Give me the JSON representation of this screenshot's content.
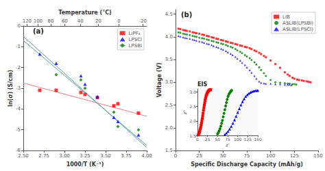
{
  "chart_data": [
    {
      "type": "scatter",
      "x2label": "Temperature (°C)",
      "xlabel": "1000/T (K⁻¹)",
      "ylabel": "ln(σ) (S/cm)",
      "annotation": "(a)",
      "xlim": [
        2.5,
        4.0
      ],
      "ylim": [
        -6,
        0
      ],
      "xticks": [
        {
          "value": 2.5,
          "label": "2.50"
        },
        2.75,
        {
          "value": 3.0,
          "label": "3.00"
        },
        3.25,
        {
          "value": 3.5,
          "label": "3.50"
        },
        3.75,
        {
          "value": 4.0,
          "label": "4.00"
        }
      ],
      "yticks": [
        0,
        -1,
        -2,
        -3,
        -4,
        -5,
        -6
      ],
      "x2lim": [
        2.5,
        4.0
      ],
      "x2ticks": [
        {
          "value": 2.545,
          "label": "120"
        },
        {
          "value": 2.678,
          "label": "100"
        },
        {
          "value": 2.833,
          "label": "80"
        },
        {
          "value": 3.003,
          "label": "60"
        },
        {
          "value": 3.194,
          "label": "40"
        },
        {
          "value": 3.413,
          "label": "20"
        },
        {
          "value": 3.663,
          "label": "0"
        },
        {
          "value": 3.953,
          "label": "-20"
        }
      ],
      "grid": false,
      "legend": "upper right",
      "series": [
        {
          "type": "line",
          "color": "#f08080",
          "line_style": "solid",
          "x": [
            2.5,
            4.0
          ],
          "values": [
            -2.75,
            -4.35
          ]
        },
        {
          "type": "line",
          "color": "#6090d0",
          "line_style": "solid",
          "x": [
            2.5,
            4.0
          ],
          "values": [
            -0.5,
            -5.85
          ]
        },
        {
          "type": "line",
          "color": "#50b080",
          "line_style": "solid",
          "x": [
            2.5,
            4.0
          ],
          "values": [
            -0.7,
            -5.75
          ]
        },
        {
          "name": "LiPF₆",
          "type": "scatter",
          "color": "red",
          "marker": "square",
          "x": [
            2.7,
            2.9,
            3.2,
            3.25,
            3.4,
            3.6,
            3.65,
            3.9
          ],
          "values": [
            -3.1,
            -3.1,
            -3.2,
            -3.3,
            -3.45,
            -3.85,
            -3.75,
            -4.2
          ]
        },
        {
          "name": "LPSCl",
          "type": "scatter",
          "color": "blue",
          "marker": "triangle",
          "x": [
            2.7,
            2.9,
            3.2,
            3.25,
            3.4,
            3.6,
            3.65,
            3.9
          ],
          "values": [
            -1.35,
            -1.8,
            -2.4,
            -2.8,
            -3.4,
            -4.4,
            -4.6,
            -5.25
          ]
        },
        {
          "name": "LPSBl",
          "type": "scatter",
          "color": "green",
          "marker": "diamond",
          "x": [
            2.9,
            3.2,
            3.25,
            3.6,
            3.65,
            3.9
          ],
          "values": [
            -2.35,
            -2.6,
            -3.0,
            -4.15,
            -4.85,
            -5.0
          ]
        }
      ]
    },
    {
      "type": "scatter",
      "xlabel": "Specific Discharge Capacity (mAh/g)",
      "ylabel": "Voltage (V)",
      "annotation": "(b)",
      "xlim": [
        0,
        150
      ],
      "ylim": [
        1.5,
        4.6
      ],
      "xticks": [
        0,
        25,
        50,
        75,
        100,
        125,
        150
      ],
      "yticks": [
        1.5,
        {
          "value": 2.0,
          "label": "2.0"
        },
        2.5,
        {
          "value": 3.0,
          "label": "3.0"
        },
        3.5,
        {
          "value": 4.0,
          "label": "4.0"
        },
        4.5
      ],
      "grid": false,
      "legend": "upper right",
      "series": [
        {
          "name": "LIB",
          "color": "red",
          "marker": "square",
          "x": [
            3,
            5,
            8,
            10,
            12,
            15,
            18,
            20,
            22,
            25,
            28,
            30,
            33,
            35,
            38,
            40,
            43,
            45,
            48,
            50,
            53,
            55,
            58,
            60,
            63,
            65,
            68,
            70,
            73,
            75,
            78,
            80,
            83,
            85,
            88,
            90,
            93,
            95,
            100,
            105,
            110,
            115,
            118,
            120,
            123,
            125,
            128,
            130,
            133,
            135,
            138,
            140,
            142
          ],
          "values": [
            4.18,
            4.17,
            4.15,
            4.14,
            4.13,
            4.12,
            4.1,
            4.09,
            4.08,
            4.07,
            4.05,
            4.04,
            4.02,
            4.01,
            3.99,
            3.98,
            3.96,
            3.95,
            3.93,
            3.92,
            3.9,
            3.89,
            3.87,
            3.86,
            3.84,
            3.83,
            3.81,
            3.8,
            3.78,
            3.77,
            3.75,
            3.73,
            3.7,
            3.68,
            3.65,
            3.62,
            3.58,
            3.55,
            3.48,
            3.4,
            3.32,
            3.22,
            3.17,
            3.14,
            3.1,
            3.08,
            3.06,
            3.05,
            3.04,
            3.03,
            3.02,
            3.01,
            3.0
          ]
        },
        {
          "name": "ASLIB(LPSBI)",
          "color": "green",
          "marker": "circle",
          "x": [
            3,
            5,
            8,
            10,
            12,
            15,
            18,
            20,
            22,
            25,
            28,
            30,
            33,
            35,
            38,
            40,
            43,
            45,
            48,
            50,
            53,
            55,
            58,
            60,
            63,
            65,
            68,
            70,
            73,
            75,
            78,
            80,
            83,
            85,
            88,
            90,
            93,
            95,
            100,
            105,
            110,
            115,
            118,
            120,
            123,
            125,
            127
          ],
          "values": [
            4.1,
            4.09,
            4.07,
            4.06,
            4.05,
            4.04,
            4.02,
            4.01,
            4.0,
            3.98,
            3.97,
            3.96,
            3.94,
            3.93,
            3.91,
            3.9,
            3.88,
            3.87,
            3.85,
            3.84,
            3.82,
            3.8,
            3.78,
            3.76,
            3.73,
            3.7,
            3.67,
            3.64,
            3.6,
            3.57,
            3.53,
            3.49,
            3.44,
            3.39,
            3.33,
            3.27,
            3.2,
            3.14,
            3.05,
            3.0,
            2.99,
            2.98,
            2.97,
            2.97,
            2.96,
            2.96,
            2.95
          ]
        },
        {
          "name": "ASLIB(LPSCl)",
          "color": "blue",
          "marker": "triangle",
          "x": [
            3,
            5,
            8,
            10,
            12,
            15,
            18,
            20,
            22,
            25,
            28,
            30,
            33,
            35,
            38,
            40,
            43,
            45,
            48,
            50,
            53,
            55,
            58,
            60,
            63,
            65,
            68,
            70,
            73,
            75,
            78,
            80,
            83,
            85,
            88,
            90,
            93,
            95,
            100,
            105,
            110,
            115,
            118,
            120,
            122
          ],
          "values": [
            4.02,
            4.01,
            3.99,
            3.98,
            3.97,
            3.96,
            3.94,
            3.93,
            3.92,
            3.9,
            3.89,
            3.87,
            3.85,
            3.84,
            3.82,
            3.8,
            3.78,
            3.76,
            3.74,
            3.72,
            3.69,
            3.66,
            3.63,
            3.6,
            3.56,
            3.52,
            3.48,
            3.43,
            3.38,
            3.33,
            3.27,
            3.21,
            3.14,
            3.08,
            3.02,
            2.99,
            2.98,
            2.97,
            2.97,
            2.96,
            2.96,
            2.95,
            2.95,
            2.95,
            2.94
          ]
        }
      ]
    },
    {
      "type": "line",
      "xlabel": "z'",
      "ylabel": "z''",
      "annotation": "EIS",
      "xlim": [
        0,
        150
      ],
      "ylim": [
        1.5,
        3.1
      ],
      "xticks": [
        0,
        25,
        50,
        75,
        100,
        125,
        150
      ],
      "yticks": [
        1.5,
        {
          "value": 2.0,
          "label": "2.0"
        },
        2.5,
        {
          "value": 3.0,
          "label": "3.0"
        }
      ],
      "grid": false,
      "series": [
        {
          "color": "red",
          "marker": "square",
          "line_style": "dashed",
          "x": [
            2,
            3,
            4,
            5,
            6,
            7,
            8,
            9,
            10,
            11,
            12,
            13,
            14,
            15,
            16,
            17,
            18,
            19,
            20,
            21,
            22,
            23,
            24,
            25,
            26,
            27,
            28,
            29,
            30,
            31,
            32,
            33
          ],
          "values": [
            1.52,
            1.55,
            1.58,
            1.62,
            1.67,
            1.72,
            1.78,
            1.85,
            1.92,
            2.0,
            2.08,
            2.17,
            2.26,
            2.36,
            2.45,
            2.54,
            2.62,
            2.7,
            2.77,
            2.83,
            2.88,
            2.92,
            2.95,
            2.98,
            3.0,
            3.02,
            3.04,
            3.05,
            3.06,
            3.07,
            3.07,
            3.08
          ]
        },
        {
          "color": "green",
          "marker": "circle",
          "line_style": "dashed",
          "x": [
            50,
            52,
            54,
            56,
            58,
            60,
            62,
            64,
            66,
            68,
            70,
            72,
            74,
            76,
            78,
            80,
            82,
            83,
            84,
            85
          ],
          "values": [
            1.55,
            1.6,
            1.66,
            1.73,
            1.82,
            1.92,
            2.02,
            2.14,
            2.26,
            2.38,
            2.51,
            2.63,
            2.74,
            2.84,
            2.91,
            2.96,
            3.0,
            3.02,
            3.04,
            3.05
          ]
        },
        {
          "color": "blue",
          "marker": "triangle",
          "line_style": "dashed",
          "x": [
            68,
            72,
            76,
            80,
            84,
            88,
            92,
            96,
            100,
            104,
            108,
            112,
            116,
            120,
            124,
            128,
            132,
            136,
            140,
            144,
            148,
            150
          ],
          "values": [
            1.53,
            1.58,
            1.64,
            1.72,
            1.81,
            1.92,
            2.03,
            2.16,
            2.29,
            2.42,
            2.55,
            2.66,
            2.76,
            2.84,
            2.9,
            2.95,
            2.98,
            3.01,
            3.03,
            3.04,
            3.05,
            3.05
          ]
        }
      ]
    }
  ]
}
